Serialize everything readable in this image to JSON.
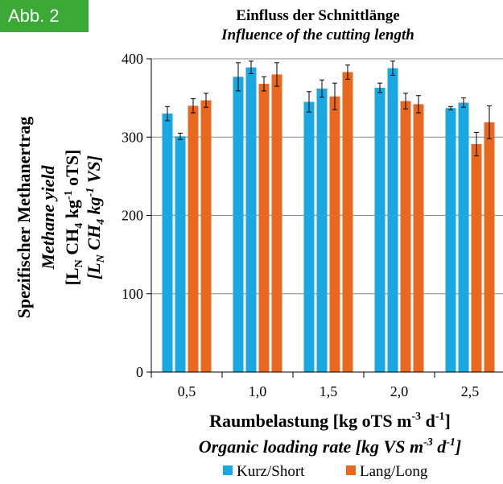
{
  "badge": "Abb. 2",
  "chart_data": {
    "type": "bar",
    "title": "Einfluss der Schnittlänge",
    "subtitle": "Influence of the cutting length",
    "categories": [
      "0,5",
      "1,0",
      "1,5",
      "2,0",
      "2,5"
    ],
    "ylim": [
      0,
      400
    ],
    "yticks": [
      0,
      100,
      200,
      300,
      400
    ],
    "grid": true,
    "series": [
      {
        "name": "Kurz/Short",
        "color": "#1aa8e0",
        "values": [
          [
            330,
            301
          ],
          [
            377,
            389
          ],
          [
            345,
            362
          ],
          [
            363,
            388
          ],
          [
            337,
            344
          ]
        ],
        "errors": [
          [
            9,
            4
          ],
          [
            18,
            8
          ],
          [
            13,
            11
          ],
          [
            6,
            9
          ],
          [
            2,
            6
          ]
        ]
      },
      {
        "name": "Lang/Long",
        "color": "#e8681f",
        "values": [
          [
            340,
            347
          ],
          [
            368,
            380
          ],
          [
            352,
            383
          ],
          [
            346,
            342
          ],
          [
            291,
            319
          ]
        ],
        "errors": [
          [
            9,
            9
          ],
          [
            9,
            15
          ],
          [
            17,
            9
          ],
          [
            10,
            11
          ],
          [
            15,
            21
          ]
        ]
      }
    ],
    "xlabel": {
      "de": "Raumbelastung [kg oTS m",
      "de_sup1": "-3",
      "de_mid": " d",
      "de_sup2": "-1",
      "de_end": "]",
      "en": "Organic loading rate [kg VS m",
      "en_sup1": "-3",
      "en_mid": " d",
      "en_sup2": "-1",
      "en_end": "]"
    },
    "ylabel": {
      "de": "Spezifischer Methanertrag",
      "en": "Methane yield",
      "unit_de": {
        "a": "[L",
        "sub1": "N",
        "b": " CH",
        "sub2": "4",
        "c": " kg",
        "sup": "-1",
        "d": " oTS]"
      },
      "unit_en": {
        "a": "[L",
        "sub1": "N",
        "b": " CH",
        "sub2": "4",
        "c": " kg",
        "sup": "-1",
        "d": " VS]"
      }
    },
    "legend_position": "bottom"
  }
}
